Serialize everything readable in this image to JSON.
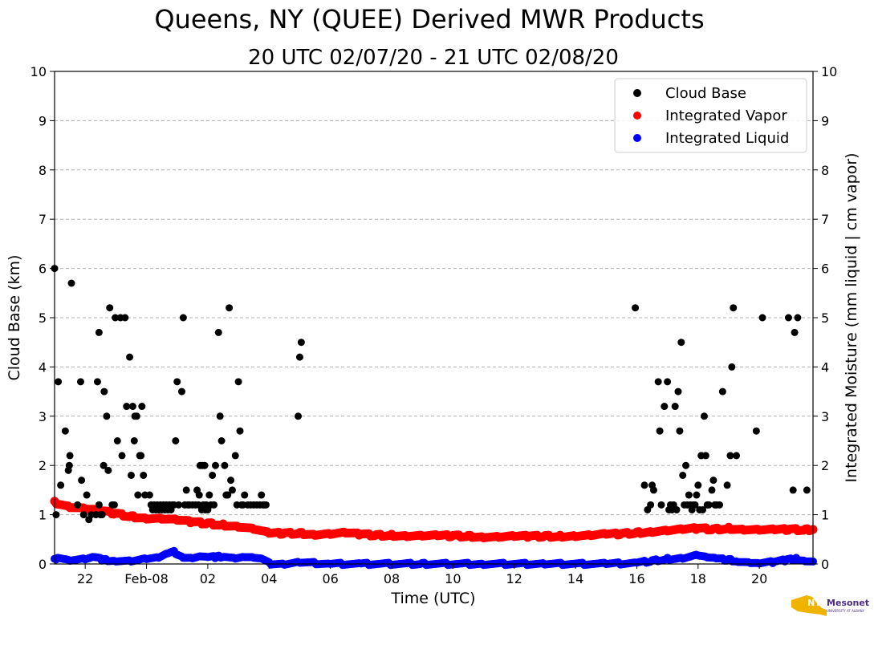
{
  "chart_data": {
    "type": "scatter",
    "title": "Queens, NY (QUEE) Derived MWR Products",
    "subtitle": "20 UTC 02/07/20 - 21 UTC 02/08/20",
    "xlabel": "Time (UTC)",
    "ylabel": "Cloud Base (km)",
    "ylabel_right": "Integrated Moisture (mm liquid | cm vapor)",
    "x_unit": "hours since 20 UTC 02/07/20",
    "xlim": [
      0,
      24.75
    ],
    "ylim": [
      0,
      10
    ],
    "grid": "horizontal dashed",
    "legend_position": "top-right",
    "x_ticks": [
      {
        "x": 1,
        "label": "22"
      },
      {
        "x": 3,
        "label": "Feb-08"
      },
      {
        "x": 5,
        "label": "02"
      },
      {
        "x": 7,
        "label": "04"
      },
      {
        "x": 9,
        "label": "06"
      },
      {
        "x": 11,
        "label": "08"
      },
      {
        "x": 13,
        "label": "10"
      },
      {
        "x": 15,
        "label": "12"
      },
      {
        "x": 17,
        "label": "14"
      },
      {
        "x": 19,
        "label": "16"
      },
      {
        "x": 21,
        "label": "18"
      },
      {
        "x": 23,
        "label": "20"
      }
    ],
    "y_ticks": [
      "0",
      "1",
      "2",
      "3",
      "4",
      "5",
      "6",
      "7",
      "8",
      "9",
      "10"
    ],
    "series": [
      {
        "name": "Cloud Base",
        "color": "#000000",
        "points": [
          [
            0.0,
            6.0
          ],
          [
            0.05,
            1.0
          ],
          [
            0.12,
            3.7
          ],
          [
            0.2,
            1.6
          ],
          [
            0.35,
            2.7
          ],
          [
            0.45,
            1.9
          ],
          [
            0.48,
            2.0
          ],
          [
            0.5,
            2.2
          ],
          [
            0.55,
            5.7
          ],
          [
            0.75,
            1.2
          ],
          [
            0.85,
            3.7
          ],
          [
            0.88,
            1.7
          ],
          [
            0.95,
            1.0
          ],
          [
            1.05,
            1.4
          ],
          [
            1.12,
            0.9
          ],
          [
            1.2,
            1.0
          ],
          [
            1.35,
            1.0
          ],
          [
            1.4,
            3.7
          ],
          [
            1.45,
            1.2
          ],
          [
            1.5,
            1.0
          ],
          [
            1.45,
            4.7
          ],
          [
            1.55,
            1.0
          ],
          [
            1.6,
            2.0
          ],
          [
            1.62,
            3.5
          ],
          [
            1.7,
            3.0
          ],
          [
            1.75,
            1.9
          ],
          [
            1.8,
            5.2
          ],
          [
            1.88,
            1.2
          ],
          [
            1.95,
            1.2
          ],
          [
            1.98,
            5.0
          ],
          [
            2.05,
            2.5
          ],
          [
            2.15,
            5.0
          ],
          [
            2.2,
            2.2
          ],
          [
            2.3,
            5.0
          ],
          [
            2.35,
            3.2
          ],
          [
            2.45,
            4.2
          ],
          [
            2.5,
            1.8
          ],
          [
            2.55,
            3.2
          ],
          [
            2.6,
            2.5
          ],
          [
            2.62,
            3.0
          ],
          [
            2.68,
            3.0
          ],
          [
            2.72,
            1.4
          ],
          [
            2.78,
            2.2
          ],
          [
            2.82,
            2.2
          ],
          [
            2.85,
            3.2
          ],
          [
            2.9,
            1.8
          ],
          [
            2.95,
            1.4
          ],
          [
            3.1,
            1.4
          ],
          [
            3.15,
            1.2
          ],
          [
            3.2,
            1.1
          ],
          [
            3.25,
            1.2
          ],
          [
            3.3,
            1.1
          ],
          [
            3.35,
            1.2
          ],
          [
            3.4,
            1.1
          ],
          [
            3.45,
            1.2
          ],
          [
            3.5,
            1.1
          ],
          [
            3.55,
            1.2
          ],
          [
            3.6,
            1.1
          ],
          [
            3.65,
            1.2
          ],
          [
            3.7,
            1.1
          ],
          [
            3.75,
            1.2
          ],
          [
            3.8,
            1.1
          ],
          [
            3.85,
            1.2
          ],
          [
            3.9,
            1.2
          ],
          [
            3.95,
            2.5
          ],
          [
            4.0,
            3.7
          ],
          [
            4.05,
            1.2
          ],
          [
            4.15,
            3.5
          ],
          [
            4.2,
            5.0
          ],
          [
            4.25,
            1.2
          ],
          [
            4.3,
            1.5
          ],
          [
            4.35,
            1.2
          ],
          [
            4.4,
            1.2
          ],
          [
            4.5,
            1.2
          ],
          [
            4.6,
            1.2
          ],
          [
            4.65,
            1.5
          ],
          [
            4.7,
            1.2
          ],
          [
            4.72,
            1.4
          ],
          [
            4.75,
            2.0
          ],
          [
            4.8,
            1.1
          ],
          [
            4.82,
            2.0
          ],
          [
            4.85,
            1.2
          ],
          [
            4.9,
            2.0
          ],
          [
            4.92,
            1.1
          ],
          [
            4.95,
            1.2
          ],
          [
            5.0,
            1.1
          ],
          [
            5.05,
            1.4
          ],
          [
            5.1,
            1.2
          ],
          [
            5.15,
            1.8
          ],
          [
            5.2,
            1.2
          ],
          [
            5.25,
            2.0
          ],
          [
            5.35,
            4.7
          ],
          [
            5.4,
            3.0
          ],
          [
            5.45,
            2.5
          ],
          [
            5.55,
            2.0
          ],
          [
            5.6,
            1.4
          ],
          [
            5.65,
            1.4
          ],
          [
            5.7,
            5.2
          ],
          [
            5.75,
            1.7
          ],
          [
            5.8,
            1.5
          ],
          [
            5.9,
            2.2
          ],
          [
            5.95,
            1.2
          ],
          [
            6.0,
            3.7
          ],
          [
            6.05,
            2.7
          ],
          [
            6.1,
            1.2
          ],
          [
            6.15,
            1.2
          ],
          [
            6.2,
            1.4
          ],
          [
            6.3,
            1.2
          ],
          [
            6.4,
            1.2
          ],
          [
            6.5,
            1.2
          ],
          [
            6.6,
            1.2
          ],
          [
            6.7,
            1.2
          ],
          [
            6.75,
            1.4
          ],
          [
            6.8,
            1.2
          ],
          [
            6.85,
            1.2
          ],
          [
            6.9,
            1.2
          ],
          [
            7.95,
            3.0
          ],
          [
            8.0,
            4.2
          ],
          [
            8.05,
            4.5
          ],
          [
            18.95,
            5.2
          ],
          [
            19.25,
            1.6
          ],
          [
            19.35,
            1.1
          ],
          [
            19.45,
            1.2
          ],
          [
            19.5,
            1.6
          ],
          [
            19.55,
            1.5
          ],
          [
            19.7,
            3.7
          ],
          [
            19.75,
            2.7
          ],
          [
            19.8,
            1.2
          ],
          [
            19.9,
            3.2
          ],
          [
            20.0,
            3.7
          ],
          [
            20.05,
            1.1
          ],
          [
            20.1,
            1.2
          ],
          [
            20.15,
            1.1
          ],
          [
            20.2,
            1.2
          ],
          [
            20.25,
            3.2
          ],
          [
            20.3,
            1.1
          ],
          [
            20.35,
            3.5
          ],
          [
            20.4,
            2.7
          ],
          [
            20.45,
            4.5
          ],
          [
            20.5,
            1.8
          ],
          [
            20.55,
            1.2
          ],
          [
            20.6,
            2.0
          ],
          [
            20.65,
            1.2
          ],
          [
            20.7,
            1.4
          ],
          [
            20.75,
            1.2
          ],
          [
            20.8,
            1.1
          ],
          [
            20.85,
            1.2
          ],
          [
            20.9,
            1.2
          ],
          [
            20.95,
            1.4
          ],
          [
            21.0,
            1.6
          ],
          [
            21.05,
            1.1
          ],
          [
            21.1,
            2.2
          ],
          [
            21.15,
            1.1
          ],
          [
            21.2,
            3.0
          ],
          [
            21.25,
            2.2
          ],
          [
            21.3,
            1.2
          ],
          [
            21.35,
            1.2
          ],
          [
            21.45,
            1.5
          ],
          [
            21.5,
            1.7
          ],
          [
            21.55,
            1.2
          ],
          [
            21.6,
            1.2
          ],
          [
            21.7,
            1.2
          ],
          [
            21.8,
            3.5
          ],
          [
            21.95,
            1.6
          ],
          [
            22.05,
            2.2
          ],
          [
            22.1,
            4.0
          ],
          [
            22.15,
            5.2
          ],
          [
            22.25,
            2.2
          ],
          [
            22.9,
            2.7
          ],
          [
            23.1,
            5.0
          ],
          [
            23.95,
            5.0
          ],
          [
            24.1,
            1.5
          ],
          [
            24.15,
            4.7
          ],
          [
            24.25,
            5.0
          ],
          [
            24.55,
            1.5
          ]
        ]
      },
      {
        "name": "Integrated Vapor",
        "color": "#ff0000",
        "points": [
          [
            0.0,
            1.25
          ],
          [
            0.5,
            1.16
          ],
          [
            1.0,
            1.12
          ],
          [
            1.5,
            1.08
          ],
          [
            2.0,
            1.02
          ],
          [
            2.5,
            0.96
          ],
          [
            3.0,
            0.93
          ],
          [
            3.5,
            0.92
          ],
          [
            4.0,
            0.89
          ],
          [
            4.5,
            0.85
          ],
          [
            5.0,
            0.82
          ],
          [
            5.5,
            0.79
          ],
          [
            6.0,
            0.76
          ],
          [
            6.5,
            0.71
          ],
          [
            7.0,
            0.62
          ],
          [
            7.5,
            0.62
          ],
          [
            8.0,
            0.62
          ],
          [
            8.5,
            0.6
          ],
          [
            9.0,
            0.61
          ],
          [
            9.5,
            0.63
          ],
          [
            10.0,
            0.6
          ],
          [
            10.5,
            0.58
          ],
          [
            11.0,
            0.58
          ],
          [
            11.5,
            0.57
          ],
          [
            12.0,
            0.57
          ],
          [
            12.5,
            0.57
          ],
          [
            13.0,
            0.57
          ],
          [
            13.5,
            0.56
          ],
          [
            14.0,
            0.55
          ],
          [
            14.5,
            0.55
          ],
          [
            15.0,
            0.56
          ],
          [
            15.5,
            0.56
          ],
          [
            16.0,
            0.56
          ],
          [
            16.5,
            0.56
          ],
          [
            17.0,
            0.57
          ],
          [
            17.5,
            0.58
          ],
          [
            18.0,
            0.6
          ],
          [
            18.5,
            0.61
          ],
          [
            19.0,
            0.63
          ],
          [
            19.5,
            0.66
          ],
          [
            20.0,
            0.68
          ],
          [
            20.5,
            0.7
          ],
          [
            21.0,
            0.72
          ],
          [
            21.5,
            0.7
          ],
          [
            22.0,
            0.72
          ],
          [
            22.5,
            0.7
          ],
          [
            23.0,
            0.69
          ],
          [
            23.5,
            0.69
          ],
          [
            24.0,
            0.7
          ],
          [
            24.5,
            0.69
          ],
          [
            24.75,
            0.7
          ]
        ]
      },
      {
        "name": "Integrated Liquid",
        "color": "#0000ff",
        "points": [
          [
            0.0,
            0.08
          ],
          [
            0.1,
            0.14
          ],
          [
            0.5,
            0.07
          ],
          [
            1.0,
            0.09
          ],
          [
            1.3,
            0.13
          ],
          [
            1.6,
            0.08
          ],
          [
            2.0,
            0.07
          ],
          [
            2.5,
            0.06
          ],
          [
            3.0,
            0.1
          ],
          [
            3.4,
            0.12
          ],
          [
            3.7,
            0.2
          ],
          [
            3.9,
            0.24
          ],
          [
            4.2,
            0.14
          ],
          [
            4.5,
            0.12
          ],
          [
            4.8,
            0.15
          ],
          [
            5.0,
            0.13
          ],
          [
            5.3,
            0.14
          ],
          [
            5.6,
            0.16
          ],
          [
            5.9,
            0.12
          ],
          [
            6.2,
            0.14
          ],
          [
            6.5,
            0.12
          ],
          [
            6.8,
            0.08
          ],
          [
            7.0,
            0.01
          ],
          [
            7.5,
            0.0
          ],
          [
            8.0,
            0.03
          ],
          [
            9.0,
            0.0
          ],
          [
            10.0,
            0.0
          ],
          [
            12.0,
            0.0
          ],
          [
            14.0,
            0.0
          ],
          [
            16.0,
            0.0
          ],
          [
            18.0,
            0.0
          ],
          [
            19.0,
            0.02
          ],
          [
            19.5,
            0.06
          ],
          [
            20.0,
            0.1
          ],
          [
            20.5,
            0.12
          ],
          [
            21.0,
            0.18
          ],
          [
            21.3,
            0.13
          ],
          [
            21.6,
            0.1
          ],
          [
            22.0,
            0.08
          ],
          [
            22.3,
            0.06
          ],
          [
            22.7,
            0.03
          ],
          [
            23.0,
            0.01
          ],
          [
            23.5,
            0.04
          ],
          [
            23.9,
            0.08
          ],
          [
            24.2,
            0.1
          ],
          [
            24.5,
            0.07
          ],
          [
            24.75,
            0.05
          ]
        ]
      }
    ]
  },
  "logo": {
    "text": "NYS Mesonet",
    "subtext": "UNIVERSITY AT ALBANY"
  }
}
